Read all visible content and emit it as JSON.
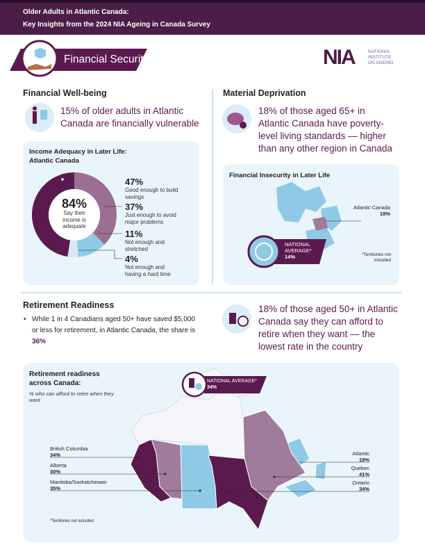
{
  "header": {
    "title_line1": "Older Adults in Atlantic Canada:",
    "title_line2": "Key Insights from the 2024 NIA Ageing in Canada Survey"
  },
  "section": {
    "title": "Financial Security"
  },
  "logo": {
    "mark": "NIA",
    "line1": "NATIONAL",
    "line2": "INSTITUTE",
    "line3": "ON AGEING"
  },
  "financial_wellbeing": {
    "heading": "Financial Well-being",
    "stat": "15% of older adults in Atlantic Canada are financially vulnerable"
  },
  "income_adequacy": {
    "title": "Income Adequacy in Later Life: Atlantic Canada",
    "center_value": "84%",
    "center_label": "Say their income is adequate",
    "segments": [
      {
        "value": 47,
        "label": "47%",
        "description": "Good enough to build savings",
        "color": "#5b1a4e"
      },
      {
        "value": 37,
        "label": "37%",
        "description": "Just enough to avoid major problems",
        "color": "#9b6f92"
      },
      {
        "value": 11,
        "label": "11%",
        "description": "Not enough and stretched",
        "color": "#8ecae6"
      },
      {
        "value": 4,
        "label": "4%",
        "description": "Not enough and having a hard time",
        "color": "#dbe7f2"
      }
    ]
  },
  "material_deprivation": {
    "heading": "Material Deprivation",
    "stat": "18% of those aged 65+ in Atlantic Canada have poverty-level living standards — higher than any other region in Canada",
    "map_title": "Financial Insecurity in Later Life",
    "region_name": "Atlantic Canada",
    "region_value": "18%",
    "national_label": "NATIONAL AVERAGE*",
    "national_value": "14%",
    "footnote": "*Territories not included"
  },
  "retirement_readiness": {
    "heading": "Retirement Readiness",
    "bullet_text": "While 1 in 4 Canadians aged 50+ have saved $5,000 or less for retirement, in Atlantic Canada, the share is ",
    "bullet_highlight": "36%",
    "stat": "18% of those aged 50+ in Atlantic Canada say they can afford to retire when they want — the lowest rate in the country"
  },
  "retirement_map": {
    "title": "Retirement readiness across Canada:",
    "subtitle": "% who can afford to retire when they want",
    "national_label": "NATIONAL AVERAGE*",
    "national_value": "34%",
    "footnote": "*Territories not included",
    "regions": [
      {
        "name": "British Columbia",
        "value": 34,
        "value_label": "34%",
        "color": "#5b1a4e"
      },
      {
        "name": "Alberta",
        "value": 30,
        "value_label": "30%",
        "color": "#a07b9b"
      },
      {
        "name": "Manitoba/Saskatchewan",
        "value": 35,
        "value_label": "35%",
        "color": "#8ecae6"
      },
      {
        "name": "Atlantic",
        "value": 18,
        "value_label": "18%",
        "color": "#8ecae6"
      },
      {
        "name": "Quebec",
        "value": 41,
        "value_label": "41%",
        "color": "#a07b9b"
      },
      {
        "name": "Ontario",
        "value": 34,
        "value_label": "34%",
        "color": "#5b1a4e"
      }
    ]
  }
}
